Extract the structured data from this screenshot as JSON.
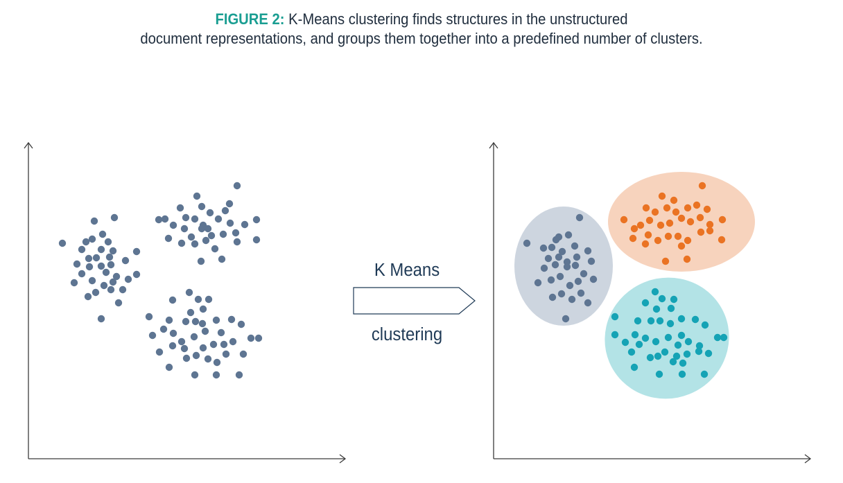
{
  "caption": {
    "label": "FIGURE 2:",
    "line1": "K-Means clustering finds structures in the unstructured",
    "line2": "document representations, and groups them together into a predefined number of clusters."
  },
  "arrow": {
    "top_label": "K Means",
    "bottom_label": "clustering"
  },
  "colors": {
    "accent": "#1a9e92",
    "text_dark": "#1f3a56",
    "axis": "#3b3b3b",
    "point_default": "#5e7592",
    "cluster_1_fill": "#cdd5df",
    "cluster_1_point": "#5e7592",
    "cluster_2_fill": "#f7d3bd",
    "cluster_2_point": "#ea7323",
    "cluster_3_fill": "#b3e3e6",
    "cluster_3_point": "#15a3b5"
  }
}
